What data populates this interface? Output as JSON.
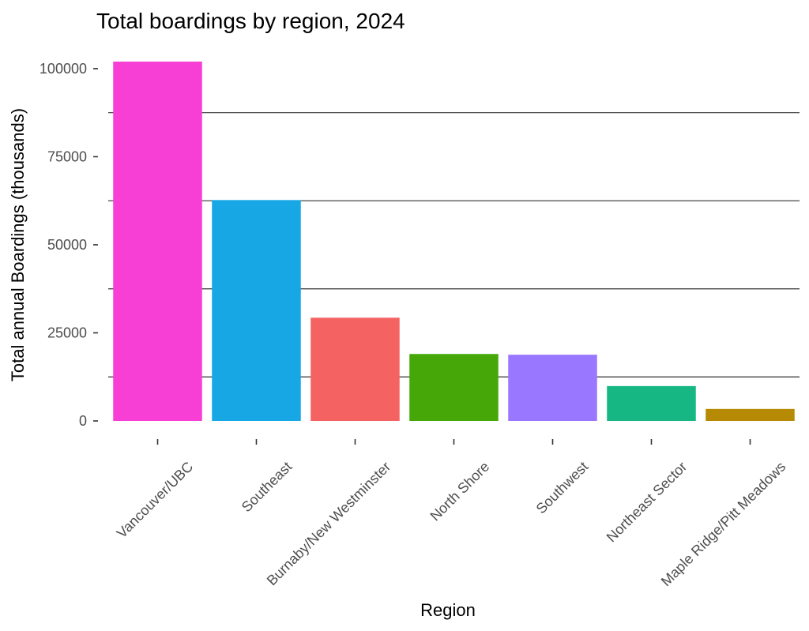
{
  "chart_data": {
    "type": "bar",
    "title": "Total boardings by region, 2024",
    "xlabel": "Region",
    "ylabel": "Total annual Boardings (thousands)",
    "categories": [
      "Vancouver/UBC",
      "Southeast",
      "Burnaby/New Westminster",
      "North Shore",
      "Southwest",
      "Northeast Sector",
      "Maple Ridge/Pitt Meadows"
    ],
    "values": [
      102000,
      62700,
      29300,
      19000,
      18800,
      9900,
      3400
    ],
    "colors": [
      "#F73FD6",
      "#17A7E5",
      "#F46262",
      "#45A808",
      "#9A77FF",
      "#17B784",
      "#B68A04"
    ],
    "ylim": [
      0,
      102000
    ],
    "yticks": [
      0,
      25000,
      50000,
      75000,
      100000
    ],
    "ytick_labels": [
      "0",
      "25000",
      "50000",
      "75000",
      "100000"
    ],
    "gridlines_at": [
      12500,
      37500,
      62500,
      87500
    ],
    "grid": "horizontal minor lines only",
    "legend": "none"
  }
}
